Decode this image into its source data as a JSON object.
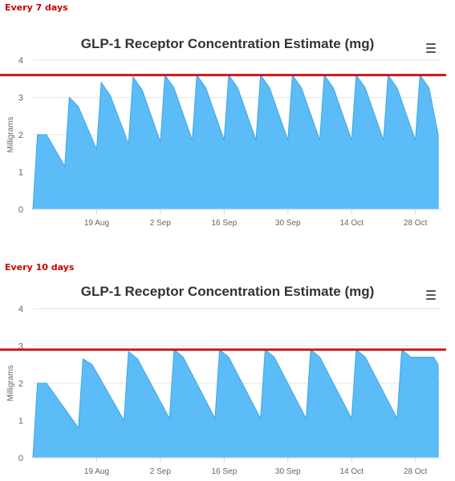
{
  "charts": [
    {
      "section_label": "Every 7 days",
      "title": "GLP-1 Receptor Concentration Estimate (mg)",
      "ylabel": "Milligrams",
      "menu_icon": "hamburger-menu-icon",
      "yticks": [
        "0",
        "1",
        "2",
        "3",
        "4"
      ],
      "xticks": [
        "19 Aug",
        "2 Sep",
        "16 Sep",
        "30 Sep",
        "14 Oct",
        "28 Oct"
      ],
      "colors": {
        "area": "#5bbcf8",
        "area_stroke": "#3aa6e8",
        "threshold": "#c41a1a",
        "grid": "#e6e6e6",
        "axis_text": "#666666"
      }
    },
    {
      "section_label": "Every 10 days",
      "title": "GLP-1 Receptor Concentration Estimate (mg)",
      "ylabel": "Milligrams",
      "menu_icon": "hamburger-menu-icon",
      "yticks": [
        "0",
        "1",
        "2",
        "3",
        "4"
      ],
      "xticks": [
        "19 Aug",
        "2 Sep",
        "16 Sep",
        "30 Sep",
        "14 Oct",
        "28 Oct"
      ],
      "colors": {
        "area": "#5bbcf8",
        "area_stroke": "#3aa6e8",
        "threshold": "#c41a1a",
        "grid": "#e6e6e6",
        "axis_text": "#666666"
      }
    }
  ],
  "chart_data": [
    {
      "type": "area",
      "title": "GLP-1 Receptor Concentration Estimate (mg)",
      "ylabel": "Milligrams",
      "xlabel": "",
      "ylim": [
        0,
        4
      ],
      "x_is_date": true,
      "xlim": [
        "2023-08-05",
        "2023-11-02"
      ],
      "threshold": 3.6,
      "grid": true,
      "series": [
        {
          "values": [
            [
              "2023-08-05",
              0
            ],
            [
              "2023-08-06",
              2.0
            ],
            [
              "2023-08-08",
              2.0
            ],
            [
              "2023-08-12",
              1.15
            ],
            [
              "2023-08-12",
              1.15
            ],
            [
              "2023-08-13",
              3.0
            ],
            [
              "2023-08-15",
              2.75
            ],
            [
              "2023-08-19",
              1.6
            ],
            [
              "2023-08-20",
              3.4
            ],
            [
              "2023-08-22",
              3.05
            ],
            [
              "2023-08-26",
              1.75
            ],
            [
              "2023-08-27",
              3.55
            ],
            [
              "2023-08-29",
              3.2
            ],
            [
              "2023-09-02",
              1.8
            ],
            [
              "2023-09-03",
              3.6
            ],
            [
              "2023-09-05",
              3.25
            ],
            [
              "2023-09-09",
              1.85
            ],
            [
              "2023-09-10",
              3.6
            ],
            [
              "2023-09-12",
              3.25
            ],
            [
              "2023-09-16",
              1.85
            ],
            [
              "2023-09-17",
              3.6
            ],
            [
              "2023-09-19",
              3.25
            ],
            [
              "2023-09-23",
              1.85
            ],
            [
              "2023-09-24",
              3.6
            ],
            [
              "2023-09-26",
              3.25
            ],
            [
              "2023-09-30",
              1.85
            ],
            [
              "2023-10-01",
              3.6
            ],
            [
              "2023-10-03",
              3.25
            ],
            [
              "2023-10-07",
              1.85
            ],
            [
              "2023-10-08",
              3.6
            ],
            [
              "2023-10-10",
              3.25
            ],
            [
              "2023-10-14",
              1.85
            ],
            [
              "2023-10-15",
              3.6
            ],
            [
              "2023-10-17",
              3.25
            ],
            [
              "2023-10-21",
              1.85
            ],
            [
              "2023-10-22",
              3.6
            ],
            [
              "2023-10-24",
              3.25
            ],
            [
              "2023-10-28",
              1.85
            ],
            [
              "2023-10-29",
              3.6
            ],
            [
              "2023-10-31",
              3.25
            ],
            [
              "2023-11-02",
              2.0
            ]
          ]
        }
      ]
    },
    {
      "type": "area",
      "title": "GLP-1 Receptor Concentration Estimate (mg)",
      "ylabel": "Milligrams",
      "xlabel": "",
      "ylim": [
        0,
        4
      ],
      "x_is_date": true,
      "xlim": [
        "2023-08-05",
        "2023-11-02"
      ],
      "threshold": 2.9,
      "grid": true,
      "series": [
        {
          "values": [
            [
              "2023-08-05",
              0
            ],
            [
              "2023-08-06",
              2.0
            ],
            [
              "2023-08-08",
              2.0
            ],
            [
              "2023-08-15",
              0.8
            ],
            [
              "2023-08-16",
              2.65
            ],
            [
              "2023-08-18",
              2.5
            ],
            [
              "2023-08-25",
              1.0
            ],
            [
              "2023-08-26",
              2.85
            ],
            [
              "2023-08-28",
              2.65
            ],
            [
              "2023-09-04",
              1.05
            ],
            [
              "2023-09-05",
              2.9
            ],
            [
              "2023-09-07",
              2.7
            ],
            [
              "2023-09-14",
              1.05
            ],
            [
              "2023-09-15",
              2.9
            ],
            [
              "2023-09-17",
              2.7
            ],
            [
              "2023-09-24",
              1.05
            ],
            [
              "2023-09-25",
              2.9
            ],
            [
              "2023-09-27",
              2.7
            ],
            [
              "2023-10-04",
              1.05
            ],
            [
              "2023-10-05",
              2.9
            ],
            [
              "2023-10-07",
              2.7
            ],
            [
              "2023-10-14",
              1.05
            ],
            [
              "2023-10-15",
              2.9
            ],
            [
              "2023-10-17",
              2.7
            ],
            [
              "2023-10-24",
              1.05
            ],
            [
              "2023-10-25",
              2.9
            ],
            [
              "2023-10-27",
              2.7
            ],
            [
              "2023-11-01",
              2.7
            ],
            [
              "2023-11-02",
              2.5
            ]
          ]
        }
      ]
    }
  ]
}
